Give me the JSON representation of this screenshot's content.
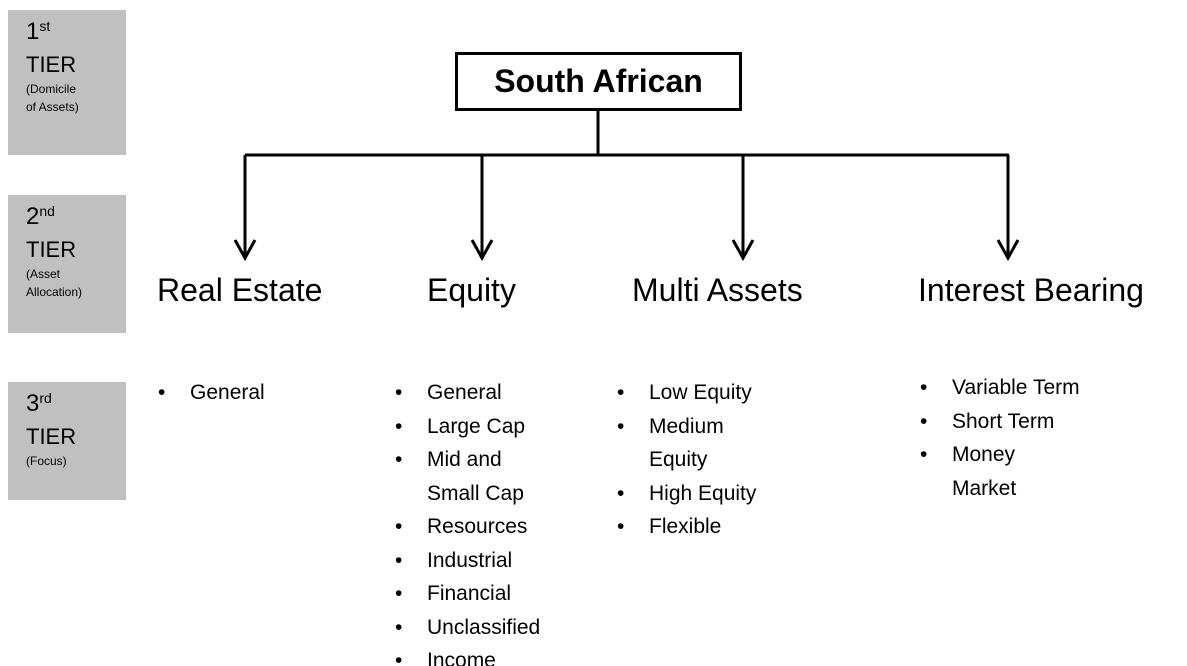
{
  "tiers": [
    {
      "number": "1",
      "suffix": "st",
      "label": "TIER",
      "note": [
        "(Domicile",
        "of Assets)"
      ]
    },
    {
      "number": "2",
      "suffix": "nd",
      "label": "TIER",
      "note": [
        "(Asset",
        "Allocation)"
      ]
    },
    {
      "number": "3",
      "suffix": "rd",
      "label": "TIER",
      "note": [
        "(Focus)"
      ]
    }
  ],
  "root": "South African",
  "categories": [
    {
      "label": "Real Estate",
      "items": [
        [
          "General"
        ]
      ]
    },
    {
      "label": "Equity",
      "items": [
        [
          "General"
        ],
        [
          "Large Cap"
        ],
        [
          "Mid and",
          "Small Cap"
        ],
        [
          "Resources"
        ],
        [
          "Industrial"
        ],
        [
          "Financial"
        ],
        [
          "Unclassified"
        ],
        [
          "Income"
        ]
      ]
    },
    {
      "label": "Multi Assets",
      "items": [
        [
          "Low Equity"
        ],
        [
          "Medium",
          "Equity"
        ],
        [
          "High Equity"
        ],
        [
          "Flexible"
        ]
      ]
    },
    {
      "label": "Interest Bearing",
      "items": [
        [
          "Variable Term"
        ],
        [
          "Short Term"
        ],
        [
          "Money",
          "Market"
        ]
      ]
    }
  ]
}
